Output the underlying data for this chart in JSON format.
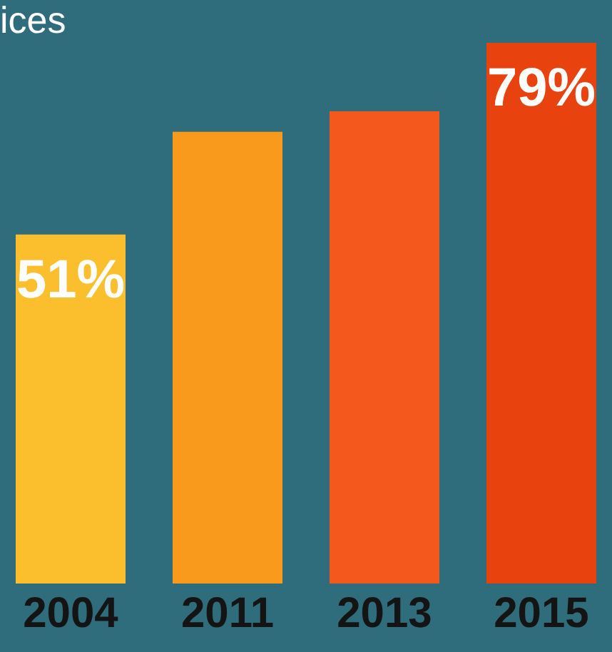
{
  "chart_data": {
    "type": "bar",
    "title": "ices",
    "categories": [
      "2004",
      "2011",
      "2013",
      "2015"
    ],
    "values": [
      51,
      66,
      69,
      79
    ],
    "colors": [
      "#fbbf2e",
      "#f99a1c",
      "#f5581c",
      "#e8420f"
    ],
    "value_labels": [
      "51%",
      null,
      null,
      "79%"
    ],
    "grid": false
  }
}
